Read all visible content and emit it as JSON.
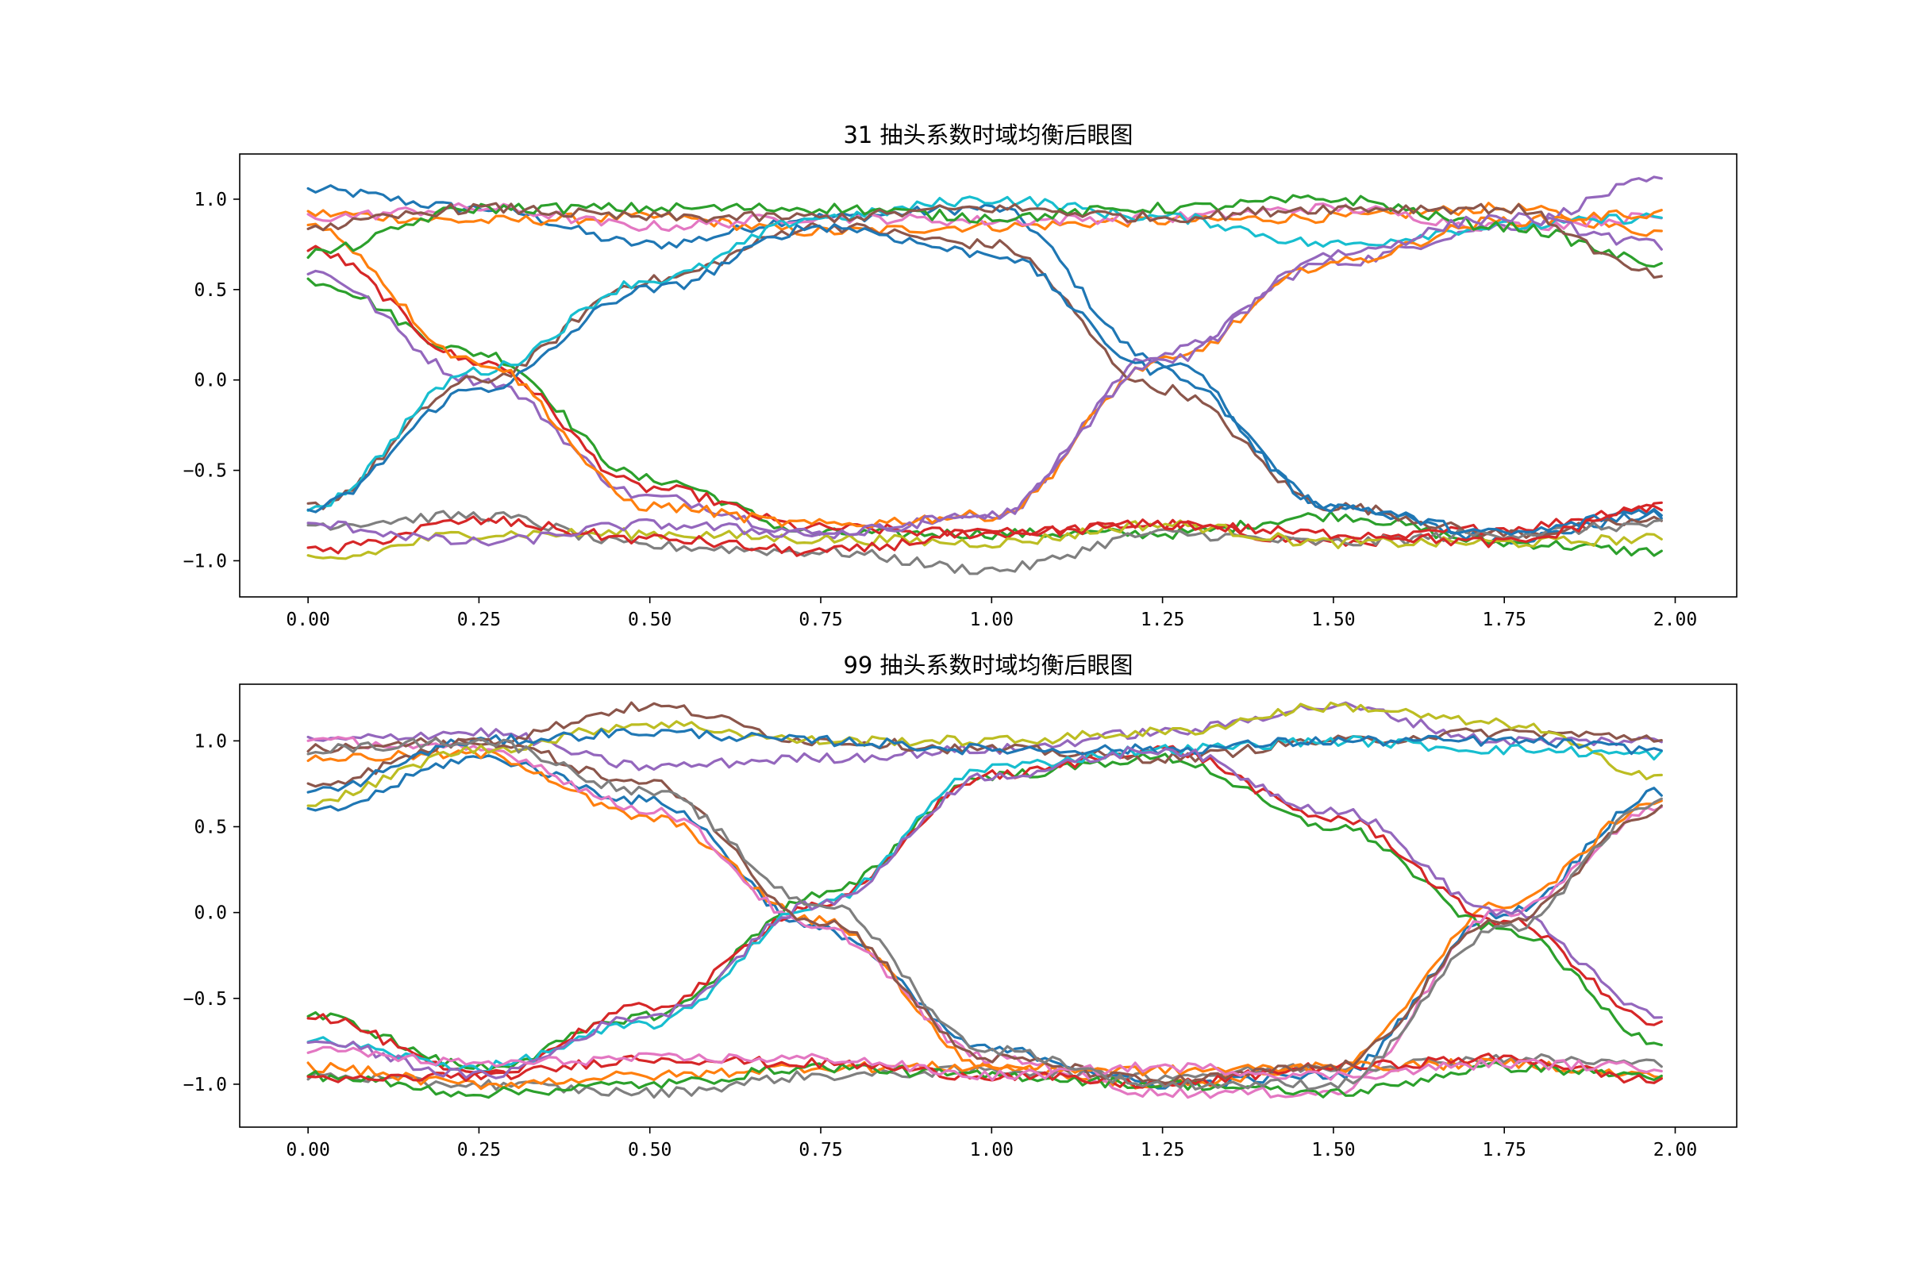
{
  "chart_data": [
    {
      "type": "line",
      "title": "31 抽头系数时域均衡后眼图",
      "xlabel": "",
      "ylabel": "",
      "xlim": [
        -0.1,
        2.09
      ],
      "ylim": [
        -1.2,
        1.25
      ],
      "xticks": [
        0.0,
        0.25,
        0.5,
        0.75,
        1.0,
        1.25,
        1.5,
        1.75,
        2.0
      ],
      "xtick_labels": [
        "0.00",
        "0.25",
        "0.50",
        "0.75",
        "1.00",
        "1.25",
        "1.50",
        "1.75",
        "2.00"
      ],
      "yticks": [
        1.0,
        0.5,
        0.0,
        -0.5,
        -1.0
      ],
      "ytick_labels": [
        "1.0",
        "0.5",
        "0.0",
        "−0.5",
        "−1.0"
      ],
      "grid": false,
      "x": [
        0.0,
        0.25,
        0.5,
        0.75,
        1.0,
        1.25,
        1.5,
        1.75,
        1.98
      ],
      "series": [
        {
          "color": "#1f77b4",
          "values": [
            1.05,
            0.95,
            0.75,
            0.9,
            0.95,
            0.1,
            -0.7,
            -0.88,
            -0.75
          ]
        },
        {
          "color": "#ff7f0e",
          "values": [
            0.92,
            0.88,
            0.9,
            0.82,
            0.85,
            0.88,
            0.9,
            0.95,
            0.82
          ]
        },
        {
          "color": "#2ca02c",
          "values": [
            0.55,
            0.15,
            -0.55,
            -0.85,
            -0.85,
            -0.85,
            -0.75,
            -0.9,
            -0.95
          ]
        },
        {
          "color": "#d62728",
          "values": [
            0.72,
            0.1,
            -0.6,
            -0.82,
            -0.85,
            -0.8,
            -0.9,
            -0.82,
            -0.7
          ]
        },
        {
          "color": "#9467bd",
          "values": [
            0.6,
            0.0,
            -0.65,
            -0.85,
            -0.75,
            0.15,
            0.65,
            0.85,
            1.1
          ]
        },
        {
          "color": "#8c564b",
          "values": [
            -0.7,
            0.0,
            0.55,
            0.85,
            0.75,
            -0.05,
            -0.7,
            -0.85,
            -0.78
          ]
        },
        {
          "color": "#e377c2",
          "values": [
            0.9,
            0.95,
            0.85,
            0.9,
            0.88,
            0.9,
            0.95,
            0.85,
            0.9
          ]
        },
        {
          "color": "#7f7f7f",
          "values": [
            -0.8,
            -0.75,
            -0.92,
            -0.95,
            -1.05,
            -0.85,
            -0.9,
            -0.85,
            -0.8
          ]
        },
        {
          "color": "#bcbd22",
          "values": [
            -1.0,
            -0.85,
            -0.85,
            -0.88,
            -0.9,
            -0.8,
            -0.9,
            -0.9,
            -0.88
          ]
        },
        {
          "color": "#17becf",
          "values": [
            -0.7,
            0.05,
            0.55,
            0.9,
            1.0,
            0.9,
            0.75,
            0.85,
            0.9
          ]
        },
        {
          "color": "#1f77b4",
          "values": [
            -0.72,
            -0.05,
            0.5,
            0.85,
            0.7,
            0.05,
            -0.7,
            -0.85,
            -0.72
          ]
        },
        {
          "color": "#ff7f0e",
          "values": [
            0.85,
            0.1,
            -0.7,
            -0.8,
            -0.75,
            0.1,
            0.65,
            0.88,
            0.92
          ]
        },
        {
          "color": "#2ca02c",
          "values": [
            0.7,
            0.95,
            0.95,
            0.95,
            0.9,
            0.95,
            1.0,
            0.85,
            0.65
          ]
        },
        {
          "color": "#d62728",
          "values": [
            -0.95,
            -0.78,
            -0.88,
            -0.95,
            -0.85,
            -0.8,
            -0.85,
            -0.9,
            -0.7
          ]
        },
        {
          "color": "#9467bd",
          "values": [
            -0.8,
            -0.9,
            -0.8,
            -0.85,
            -0.75,
            0.1,
            0.7,
            0.9,
            0.75
          ]
        },
        {
          "color": "#8c564b",
          "values": [
            0.85,
            0.95,
            0.9,
            0.9,
            0.95,
            0.9,
            0.95,
            0.95,
            0.58
          ]
        }
      ]
    },
    {
      "type": "line",
      "title": "99 抽头系数时域均衡后眼图",
      "xlabel": "",
      "ylabel": "",
      "xlim": [
        -0.1,
        2.09
      ],
      "ylim": [
        -1.25,
        1.33
      ],
      "xticks": [
        0.0,
        0.25,
        0.5,
        0.75,
        1.0,
        1.25,
        1.5,
        1.75,
        2.0
      ],
      "xtick_labels": [
        "0.00",
        "0.25",
        "0.50",
        "0.75",
        "1.00",
        "1.25",
        "1.50",
        "1.75",
        "2.00"
      ],
      "yticks": [
        1.0,
        0.5,
        0.0,
        -0.5,
        -1.0
      ],
      "ytick_labels": [
        "1.0",
        "0.5",
        "0.0",
        "−0.5",
        "−1.0"
      ],
      "grid": false,
      "x": [
        0.0,
        0.25,
        0.5,
        0.75,
        1.0,
        1.25,
        1.5,
        1.75,
        1.98
      ],
      "series": [
        {
          "color": "#1f77b4",
          "values": [
            0.58,
            0.9,
            0.65,
            -0.1,
            -0.8,
            -1.0,
            -0.95,
            0.0,
            0.7
          ]
        },
        {
          "color": "#ff7f0e",
          "values": [
            0.9,
            0.92,
            0.55,
            -0.05,
            -0.9,
            -1.0,
            -0.9,
            0.05,
            0.65
          ]
        },
        {
          "color": "#2ca02c",
          "values": [
            -0.6,
            -0.9,
            -0.6,
            0.1,
            0.8,
            0.9,
            0.5,
            -0.1,
            -0.75
          ]
        },
        {
          "color": "#d62728",
          "values": [
            -0.6,
            -0.95,
            -0.55,
            0.05,
            0.8,
            0.95,
            0.55,
            -0.05,
            -0.65
          ]
        },
        {
          "color": "#9467bd",
          "values": [
            1.0,
            1.05,
            0.85,
            0.9,
            0.95,
            1.05,
            1.2,
            1.0,
            1.0
          ]
        },
        {
          "color": "#8c564b",
          "values": [
            0.75,
            1.0,
            1.2,
            1.0,
            0.95,
            0.9,
            1.0,
            1.05,
            1.02
          ]
        },
        {
          "color": "#e377c2",
          "values": [
            1.0,
            0.95,
            0.6,
            -0.1,
            -0.85,
            -1.05,
            -1.05,
            0.0,
            0.6
          ]
        },
        {
          "color": "#7f7f7f",
          "values": [
            -0.95,
            -1.0,
            -1.05,
            -0.95,
            -0.92,
            -0.95,
            -0.9,
            -0.85,
            -0.88
          ]
        },
        {
          "color": "#bcbd22",
          "values": [
            0.65,
            0.95,
            1.1,
            1.0,
            1.0,
            1.05,
            1.2,
            1.1,
            0.8
          ]
        },
        {
          "color": "#17becf",
          "values": [
            -0.75,
            -0.9,
            -0.65,
            0.05,
            0.85,
            0.95,
            1.0,
            0.95,
            0.92
          ]
        },
        {
          "color": "#1f77b4",
          "values": [
            0.7,
            1.0,
            1.05,
            1.0,
            0.95,
            0.95,
            1.0,
            1.0,
            0.95
          ]
        },
        {
          "color": "#ff7f0e",
          "values": [
            -0.9,
            -1.0,
            -0.95,
            -0.9,
            -0.9,
            -0.92,
            -0.9,
            -0.88,
            -0.95
          ]
        },
        {
          "color": "#2ca02c",
          "values": [
            -0.95,
            -1.05,
            -1.0,
            -0.9,
            -0.95,
            -1.0,
            -1.05,
            -0.9,
            -0.95
          ]
        },
        {
          "color": "#d62728",
          "values": [
            -0.98,
            -0.95,
            -0.85,
            -0.88,
            -0.95,
            -1.0,
            -0.9,
            -0.85,
            -0.98
          ]
        },
        {
          "color": "#9467bd",
          "values": [
            -0.75,
            -0.95,
            -0.6,
            0.05,
            0.8,
            0.95,
            0.6,
            0.0,
            -0.6
          ]
        },
        {
          "color": "#8c564b",
          "values": [
            0.95,
            1.0,
            0.75,
            -0.05,
            -0.85,
            -0.98,
            -0.9,
            -0.05,
            0.6
          ]
        },
        {
          "color": "#e377c2",
          "values": [
            -0.8,
            -0.88,
            -0.85,
            -0.85,
            -0.95,
            -0.9,
            -0.95,
            -0.88,
            -0.9
          ]
        },
        {
          "color": "#7f7f7f",
          "values": [
            0.95,
            1.0,
            0.7,
            0.05,
            -0.8,
            -1.0,
            -1.0,
            -0.1,
            0.65
          ]
        }
      ]
    }
  ]
}
